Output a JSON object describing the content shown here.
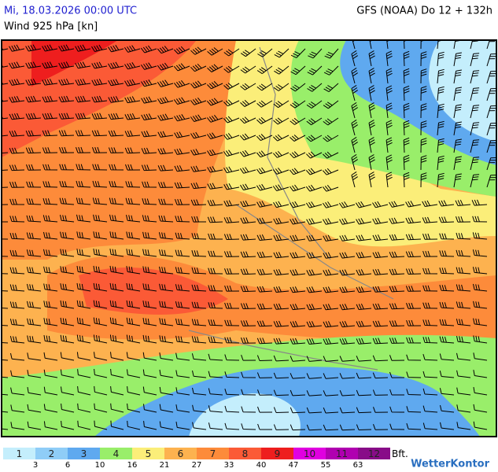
{
  "header": {
    "title": "Mi, 18.03.2026 00:00 UTC",
    "subtitle": "Wind 925 hPa [kn]",
    "model": "GFS (NOAA) Do 12 + 132h"
  },
  "legend": {
    "classes": [
      "1",
      "2",
      "3",
      "4",
      "5",
      "6",
      "7",
      "8",
      "9",
      "10",
      "11",
      "12"
    ],
    "colors": [
      "#c4eefc",
      "#8fcdf7",
      "#5fa9ef",
      "#99ee6a",
      "#fbee79",
      "#fdb24f",
      "#fd8b3a",
      "#fb5a36",
      "#ee1e1e",
      "#e000e0",
      "#b000b0",
      "#880c88"
    ],
    "thresholds": [
      "3",
      "6",
      "10",
      "16",
      "21",
      "27",
      "33",
      "40",
      "47",
      "55",
      "63"
    ],
    "unit": "Bft."
  },
  "brand": "WetterKontor"
}
